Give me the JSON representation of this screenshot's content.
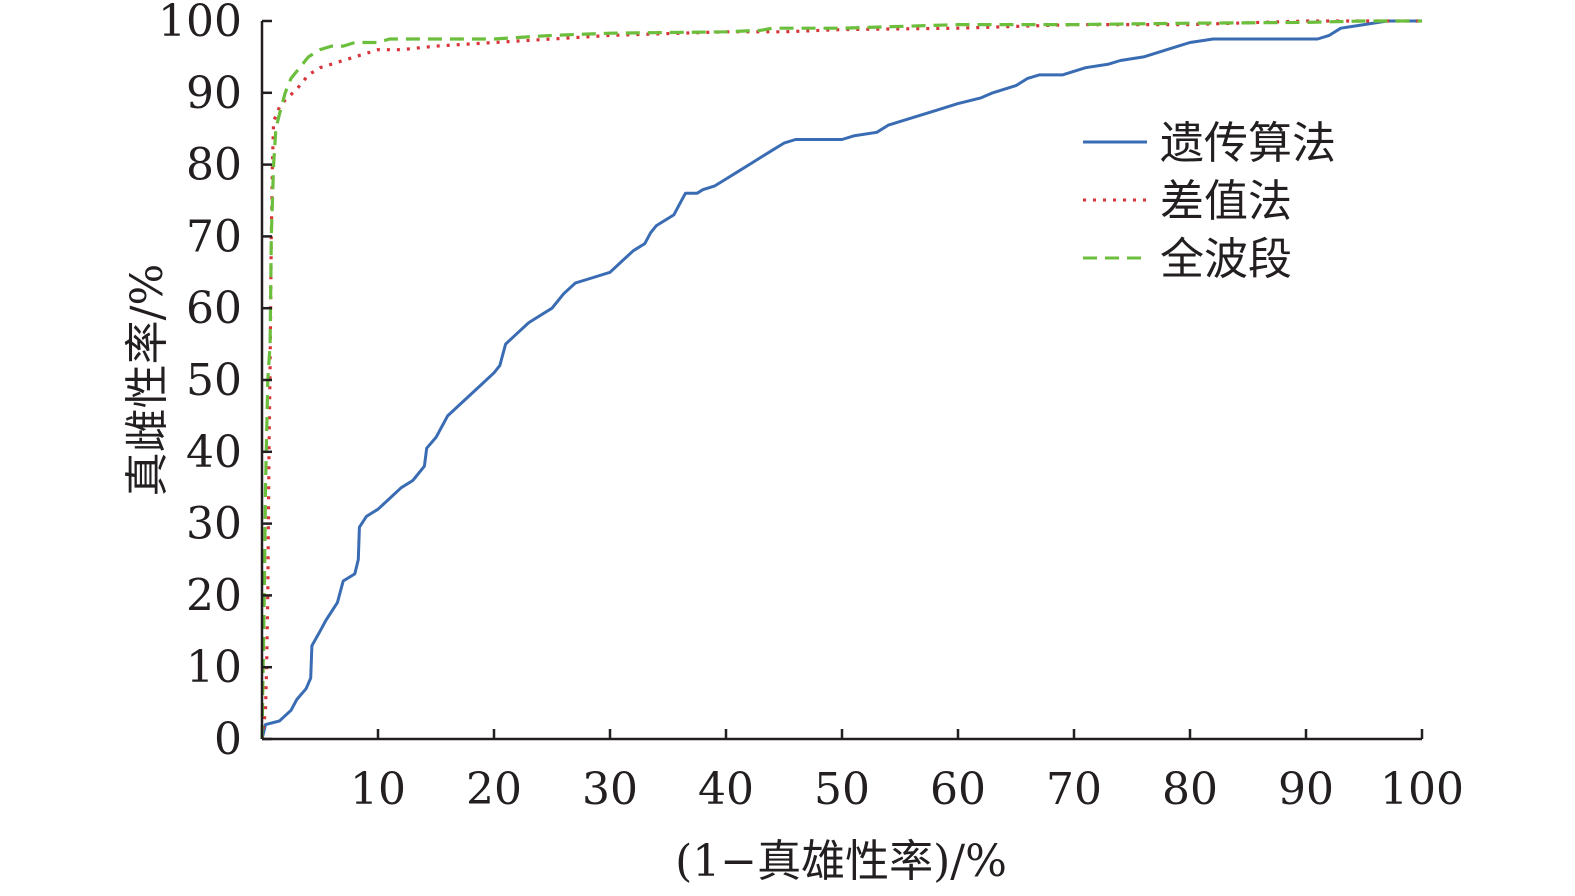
{
  "chart_data": {
    "type": "line",
    "title": "",
    "xlabel": "(1−真雄性率)/%",
    "ylabel": "真雌性率/%",
    "xlim": [
      0,
      100
    ],
    "ylim": [
      0,
      100
    ],
    "x_ticks": [
      "10",
      "20",
      "30",
      "40",
      "50",
      "60",
      "70",
      "80",
      "90",
      "100"
    ],
    "y_ticks": [
      "0",
      "10",
      "20",
      "30",
      "40",
      "50",
      "60",
      "70",
      "80",
      "90",
      "100"
    ],
    "grid": false,
    "legend_position": "right",
    "series": [
      {
        "name": "遗传算法",
        "color": "#3a6cb4",
        "style": "solid",
        "points": [
          [
            0,
            0
          ],
          [
            0.3,
            2
          ],
          [
            1.5,
            2.5
          ],
          [
            2.5,
            4
          ],
          [
            3,
            5.5
          ],
          [
            3.8,
            7
          ],
          [
            4.2,
            8.5
          ],
          [
            4.3,
            13
          ],
          [
            5,
            15
          ],
          [
            5.5,
            16.5
          ],
          [
            6.5,
            19
          ],
          [
            7,
            22
          ],
          [
            8,
            23
          ],
          [
            8.3,
            25
          ],
          [
            8.4,
            29.5
          ],
          [
            9,
            31
          ],
          [
            10,
            32
          ],
          [
            11,
            33.5
          ],
          [
            12,
            35
          ],
          [
            13,
            36
          ],
          [
            14,
            38
          ],
          [
            14.2,
            40.5
          ],
          [
            15,
            42
          ],
          [
            16,
            45
          ],
          [
            17,
            46.5
          ],
          [
            18,
            48
          ],
          [
            19,
            49.5
          ],
          [
            20,
            51
          ],
          [
            20.5,
            52
          ],
          [
            21,
            55
          ],
          [
            22,
            56.5
          ],
          [
            23,
            58
          ],
          [
            24,
            59
          ],
          [
            25,
            60
          ],
          [
            26,
            62
          ],
          [
            27,
            63.5
          ],
          [
            28,
            64
          ],
          [
            30,
            65
          ],
          [
            31,
            66.5
          ],
          [
            32,
            68
          ],
          [
            33,
            69
          ],
          [
            33.5,
            70.5
          ],
          [
            34,
            71.5
          ],
          [
            35.5,
            73
          ],
          [
            36,
            74.5
          ],
          [
            36.5,
            76
          ],
          [
            37.5,
            76
          ],
          [
            38,
            76.5
          ],
          [
            39,
            77
          ],
          [
            40,
            78
          ],
          [
            41,
            79
          ],
          [
            42,
            80
          ],
          [
            43,
            81
          ],
          [
            44,
            82
          ],
          [
            45,
            83
          ],
          [
            46,
            83.5
          ],
          [
            47,
            83.5
          ],
          [
            50,
            83.5
          ],
          [
            51,
            84
          ],
          [
            53,
            84.5
          ],
          [
            54,
            85.5
          ],
          [
            56,
            86.5
          ],
          [
            58,
            87.5
          ],
          [
            60,
            88.5
          ],
          [
            62,
            89.3
          ],
          [
            63,
            90
          ],
          [
            65,
            91
          ],
          [
            66,
            92
          ],
          [
            67,
            92.5
          ],
          [
            69,
            92.5
          ],
          [
            70,
            93
          ],
          [
            71,
            93.5
          ],
          [
            73,
            94
          ],
          [
            74,
            94.5
          ],
          [
            76,
            95
          ],
          [
            77,
            95.5
          ],
          [
            78,
            96
          ],
          [
            79,
            96.5
          ],
          [
            80,
            97
          ],
          [
            82,
            97.5
          ],
          [
            85,
            97.5
          ],
          [
            89,
            97.5
          ],
          [
            91,
            97.5
          ],
          [
            92,
            98
          ],
          [
            93,
            99
          ],
          [
            95,
            99.5
          ],
          [
            97,
            100
          ],
          [
            100,
            100
          ]
        ]
      },
      {
        "name": "差值法",
        "color": "#d7343a",
        "style": "dotted",
        "points": [
          [
            0,
            0
          ],
          [
            0.3,
            4
          ],
          [
            0.4,
            10
          ],
          [
            0.5,
            20
          ],
          [
            0.6,
            40
          ],
          [
            0.7,
            52
          ],
          [
            0.8,
            70
          ],
          [
            0.9,
            80
          ],
          [
            1,
            86
          ],
          [
            1.5,
            88
          ],
          [
            2,
            89
          ],
          [
            3,
            90.5
          ],
          [
            3.5,
            91.5
          ],
          [
            4,
            92.5
          ],
          [
            5,
            93.5
          ],
          [
            6,
            94
          ],
          [
            7,
            94.5
          ],
          [
            8,
            95
          ],
          [
            9,
            95.5
          ],
          [
            10,
            96
          ],
          [
            12,
            96
          ],
          [
            15,
            96.5
          ],
          [
            20,
            97
          ],
          [
            25,
            97.5
          ],
          [
            30,
            98
          ],
          [
            40,
            98.5
          ],
          [
            45,
            98.5
          ],
          [
            50,
            98.8
          ],
          [
            60,
            99
          ],
          [
            70,
            99.5
          ],
          [
            80,
            99.5
          ],
          [
            90,
            100
          ],
          [
            100,
            100
          ]
        ]
      },
      {
        "name": "全波段",
        "color": "#6cbf3c",
        "style": "dashed",
        "points": [
          [
            0,
            0
          ],
          [
            0.2,
            20
          ],
          [
            0.3,
            35
          ],
          [
            0.5,
            50
          ],
          [
            0.7,
            55
          ],
          [
            0.8,
            70
          ],
          [
            1,
            80
          ],
          [
            1.2,
            85
          ],
          [
            1.5,
            87
          ],
          [
            2,
            90
          ],
          [
            2.5,
            92
          ],
          [
            3,
            93
          ],
          [
            3.5,
            94
          ],
          [
            4,
            95
          ],
          [
            4.5,
            95.5
          ],
          [
            5,
            96
          ],
          [
            6,
            96.5
          ],
          [
            7,
            96.5
          ],
          [
            8,
            97
          ],
          [
            10,
            97
          ],
          [
            11,
            97.5
          ],
          [
            15,
            97.5
          ],
          [
            20,
            97.5
          ],
          [
            25,
            98
          ],
          [
            30,
            98.3
          ],
          [
            40,
            98.5
          ],
          [
            43,
            98.7
          ],
          [
            44,
            99
          ],
          [
            50,
            99
          ],
          [
            60,
            99.5
          ],
          [
            70,
            99.5
          ],
          [
            80,
            99.7
          ],
          [
            90,
            99.8
          ],
          [
            95,
            100
          ],
          [
            100,
            100
          ]
        ]
      }
    ]
  }
}
